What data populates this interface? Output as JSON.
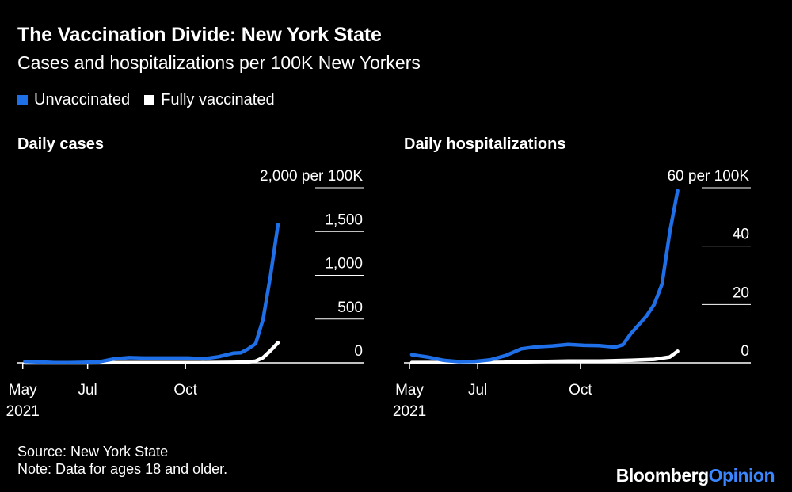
{
  "title": "The Vaccination Divide: New York State",
  "subtitle": "Cases and hospitalizations per 100K New Yorkers",
  "legend": {
    "unvaccinated": "Unvaccinated",
    "vaccinated": "Fully vaccinated"
  },
  "colors": {
    "unvaccinated": "#1f6fe8",
    "vaccinated": "#ffffff",
    "background": "#000000"
  },
  "source": {
    "line1": "Source: New York State",
    "line2": "Note: Data for ages 18 and older."
  },
  "brand": {
    "bloomberg": "Bloomberg",
    "opinion": "Opinion"
  },
  "chart_data": [
    {
      "type": "line",
      "title": "Daily cases",
      "ylim": [
        0,
        2000
      ],
      "yticks": [
        {
          "value": 2000,
          "label": "2,000 per 100K"
        },
        {
          "value": 1500,
          "label": "1,500"
        },
        {
          "value": 1000,
          "label": "1,000"
        },
        {
          "value": 500,
          "label": "500"
        },
        {
          "value": 0,
          "label": "0"
        }
      ],
      "xlim": [
        "2021-04-26",
        "2022-01-31"
      ],
      "xticks": [
        {
          "date": "2021-05-01",
          "label": "May",
          "label2": "2021"
        },
        {
          "date": "2021-07-01",
          "label": "Jul"
        },
        {
          "date": "2021-10-01",
          "label": "Oct"
        }
      ],
      "series": [
        {
          "name": "Unvaccinated",
          "x": [
            "2021-05-03",
            "2021-05-17",
            "2021-05-31",
            "2021-06-14",
            "2021-06-28",
            "2021-07-12",
            "2021-07-26",
            "2021-08-09",
            "2021-08-23",
            "2021-09-06",
            "2021-09-20",
            "2021-10-04",
            "2021-10-18",
            "2021-11-01",
            "2021-11-15",
            "2021-11-22",
            "2021-11-29",
            "2021-12-06",
            "2021-12-13",
            "2021-12-20",
            "2021-12-27"
          ],
          "values": [
            15,
            10,
            3,
            3,
            5,
            12,
            45,
            60,
            55,
            55,
            55,
            55,
            45,
            70,
            110,
            115,
            160,
            220,
            500,
            1000,
            1580
          ]
        },
        {
          "name": "Fully vaccinated",
          "x": [
            "2021-05-03",
            "2021-05-31",
            "2021-06-28",
            "2021-07-26",
            "2021-08-23",
            "2021-09-20",
            "2021-10-18",
            "2021-11-15",
            "2021-11-29",
            "2021-12-06",
            "2021-12-13",
            "2021-12-20",
            "2021-12-27"
          ],
          "values": [
            0,
            0,
            0,
            2,
            3,
            3,
            3,
            5,
            10,
            20,
            60,
            140,
            230
          ]
        }
      ]
    },
    {
      "type": "line",
      "title": "Daily hospitalizations",
      "ylim": [
        0,
        60
      ],
      "yticks": [
        {
          "value": 60,
          "label": "60 per 100K"
        },
        {
          "value": 40,
          "label": "40"
        },
        {
          "value": 20,
          "label": "20"
        },
        {
          "value": 0,
          "label": "0"
        }
      ],
      "xlim": [
        "2021-04-26",
        "2022-01-31"
      ],
      "xticks": [
        {
          "date": "2021-05-01",
          "label": "May",
          "label2": "2021"
        },
        {
          "date": "2021-07-01",
          "label": "Jul"
        },
        {
          "date": "2021-10-01",
          "label": "Oct"
        }
      ],
      "series": [
        {
          "name": "Unvaccinated",
          "x": [
            "2021-05-03",
            "2021-05-17",
            "2021-05-31",
            "2021-06-14",
            "2021-06-28",
            "2021-07-12",
            "2021-07-26",
            "2021-08-09",
            "2021-08-23",
            "2021-09-06",
            "2021-09-20",
            "2021-10-04",
            "2021-10-18",
            "2021-11-01",
            "2021-11-08",
            "2021-11-15",
            "2021-11-22",
            "2021-11-29",
            "2021-12-06",
            "2021-12-13",
            "2021-12-20",
            "2021-12-27"
          ],
          "values": [
            2.8,
            2.0,
            0.9,
            0.4,
            0.5,
            1.0,
            2.5,
            4.8,
            5.5,
            5.8,
            6.3,
            6.0,
            5.9,
            5.4,
            6.2,
            10.0,
            13.0,
            16.0,
            20.0,
            27.0,
            45.0,
            59.0
          ]
        },
        {
          "name": "Fully vaccinated",
          "x": [
            "2021-05-03",
            "2021-05-31",
            "2021-06-28",
            "2021-07-26",
            "2021-08-23",
            "2021-09-20",
            "2021-10-18",
            "2021-11-15",
            "2021-12-06",
            "2021-12-20",
            "2021-12-27"
          ],
          "values": [
            0.1,
            0.1,
            0.1,
            0.2,
            0.4,
            0.6,
            0.6,
            0.9,
            1.2,
            2.0,
            4.0
          ]
        }
      ]
    }
  ]
}
